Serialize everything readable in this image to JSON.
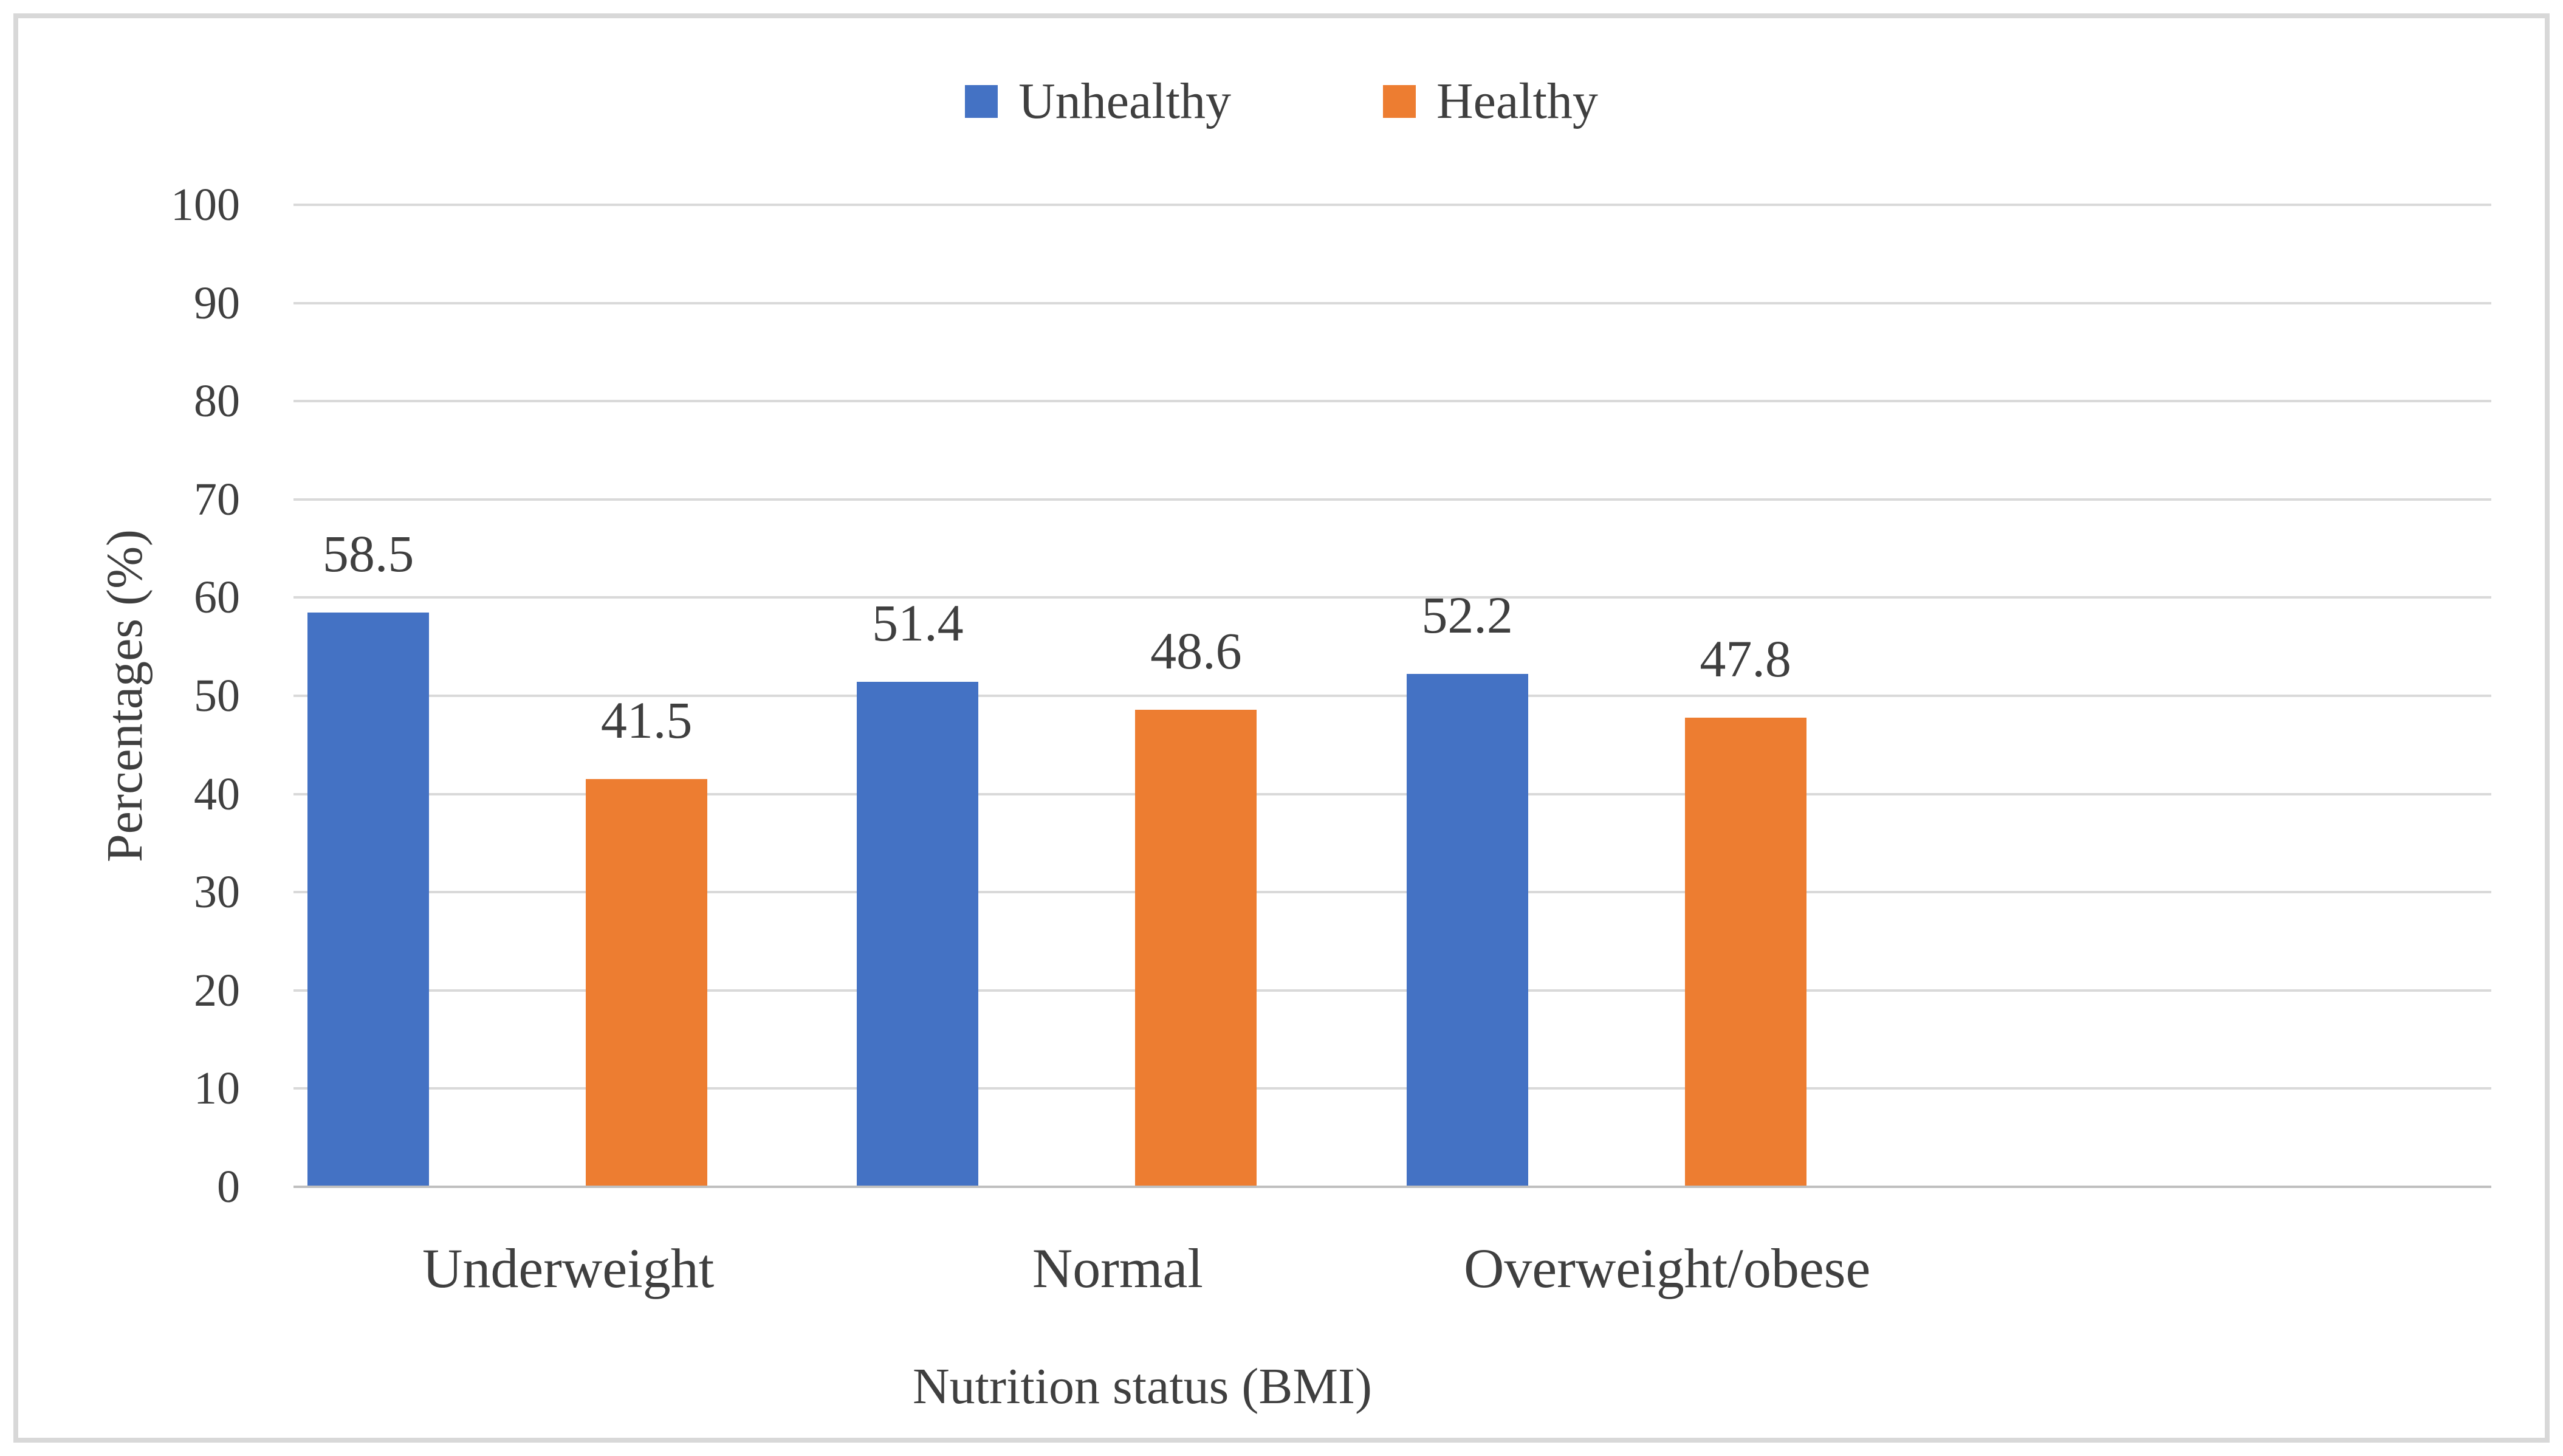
{
  "chart_data": {
    "type": "bar",
    "title": "",
    "categories": [
      "Underweight",
      "Normal",
      "Overweight/obese"
    ],
    "series": [
      {
        "name": "Unhealthy",
        "color": "#4472C4",
        "values": [
          58.5,
          51.4,
          52.2
        ]
      },
      {
        "name": "Healthy",
        "color": "#ED7D31",
        "values": [
          41.5,
          48.6,
          47.8
        ]
      }
    ],
    "data_labels": [
      "58.5",
      "41.5",
      "51.4",
      "48.6",
      "52.2",
      "47.8"
    ],
    "xlabel": "Nutrition status (BMI)",
    "ylabel": "Percentages (%)",
    "ylim": [
      0,
      100
    ],
    "yticks": [
      0,
      10,
      20,
      30,
      40,
      50,
      60,
      70,
      80,
      90,
      100
    ],
    "grid": true,
    "legend_position": "top-center",
    "layout_hint": "three category groups plus one empty fourth slot on the right"
  },
  "style_colors": {
    "text": "#3f3f3f",
    "gridline": "#d9d9d9",
    "axis_line": "#bfbfbf",
    "frame_border": "#d8d8d8",
    "background": "#ffffff"
  }
}
